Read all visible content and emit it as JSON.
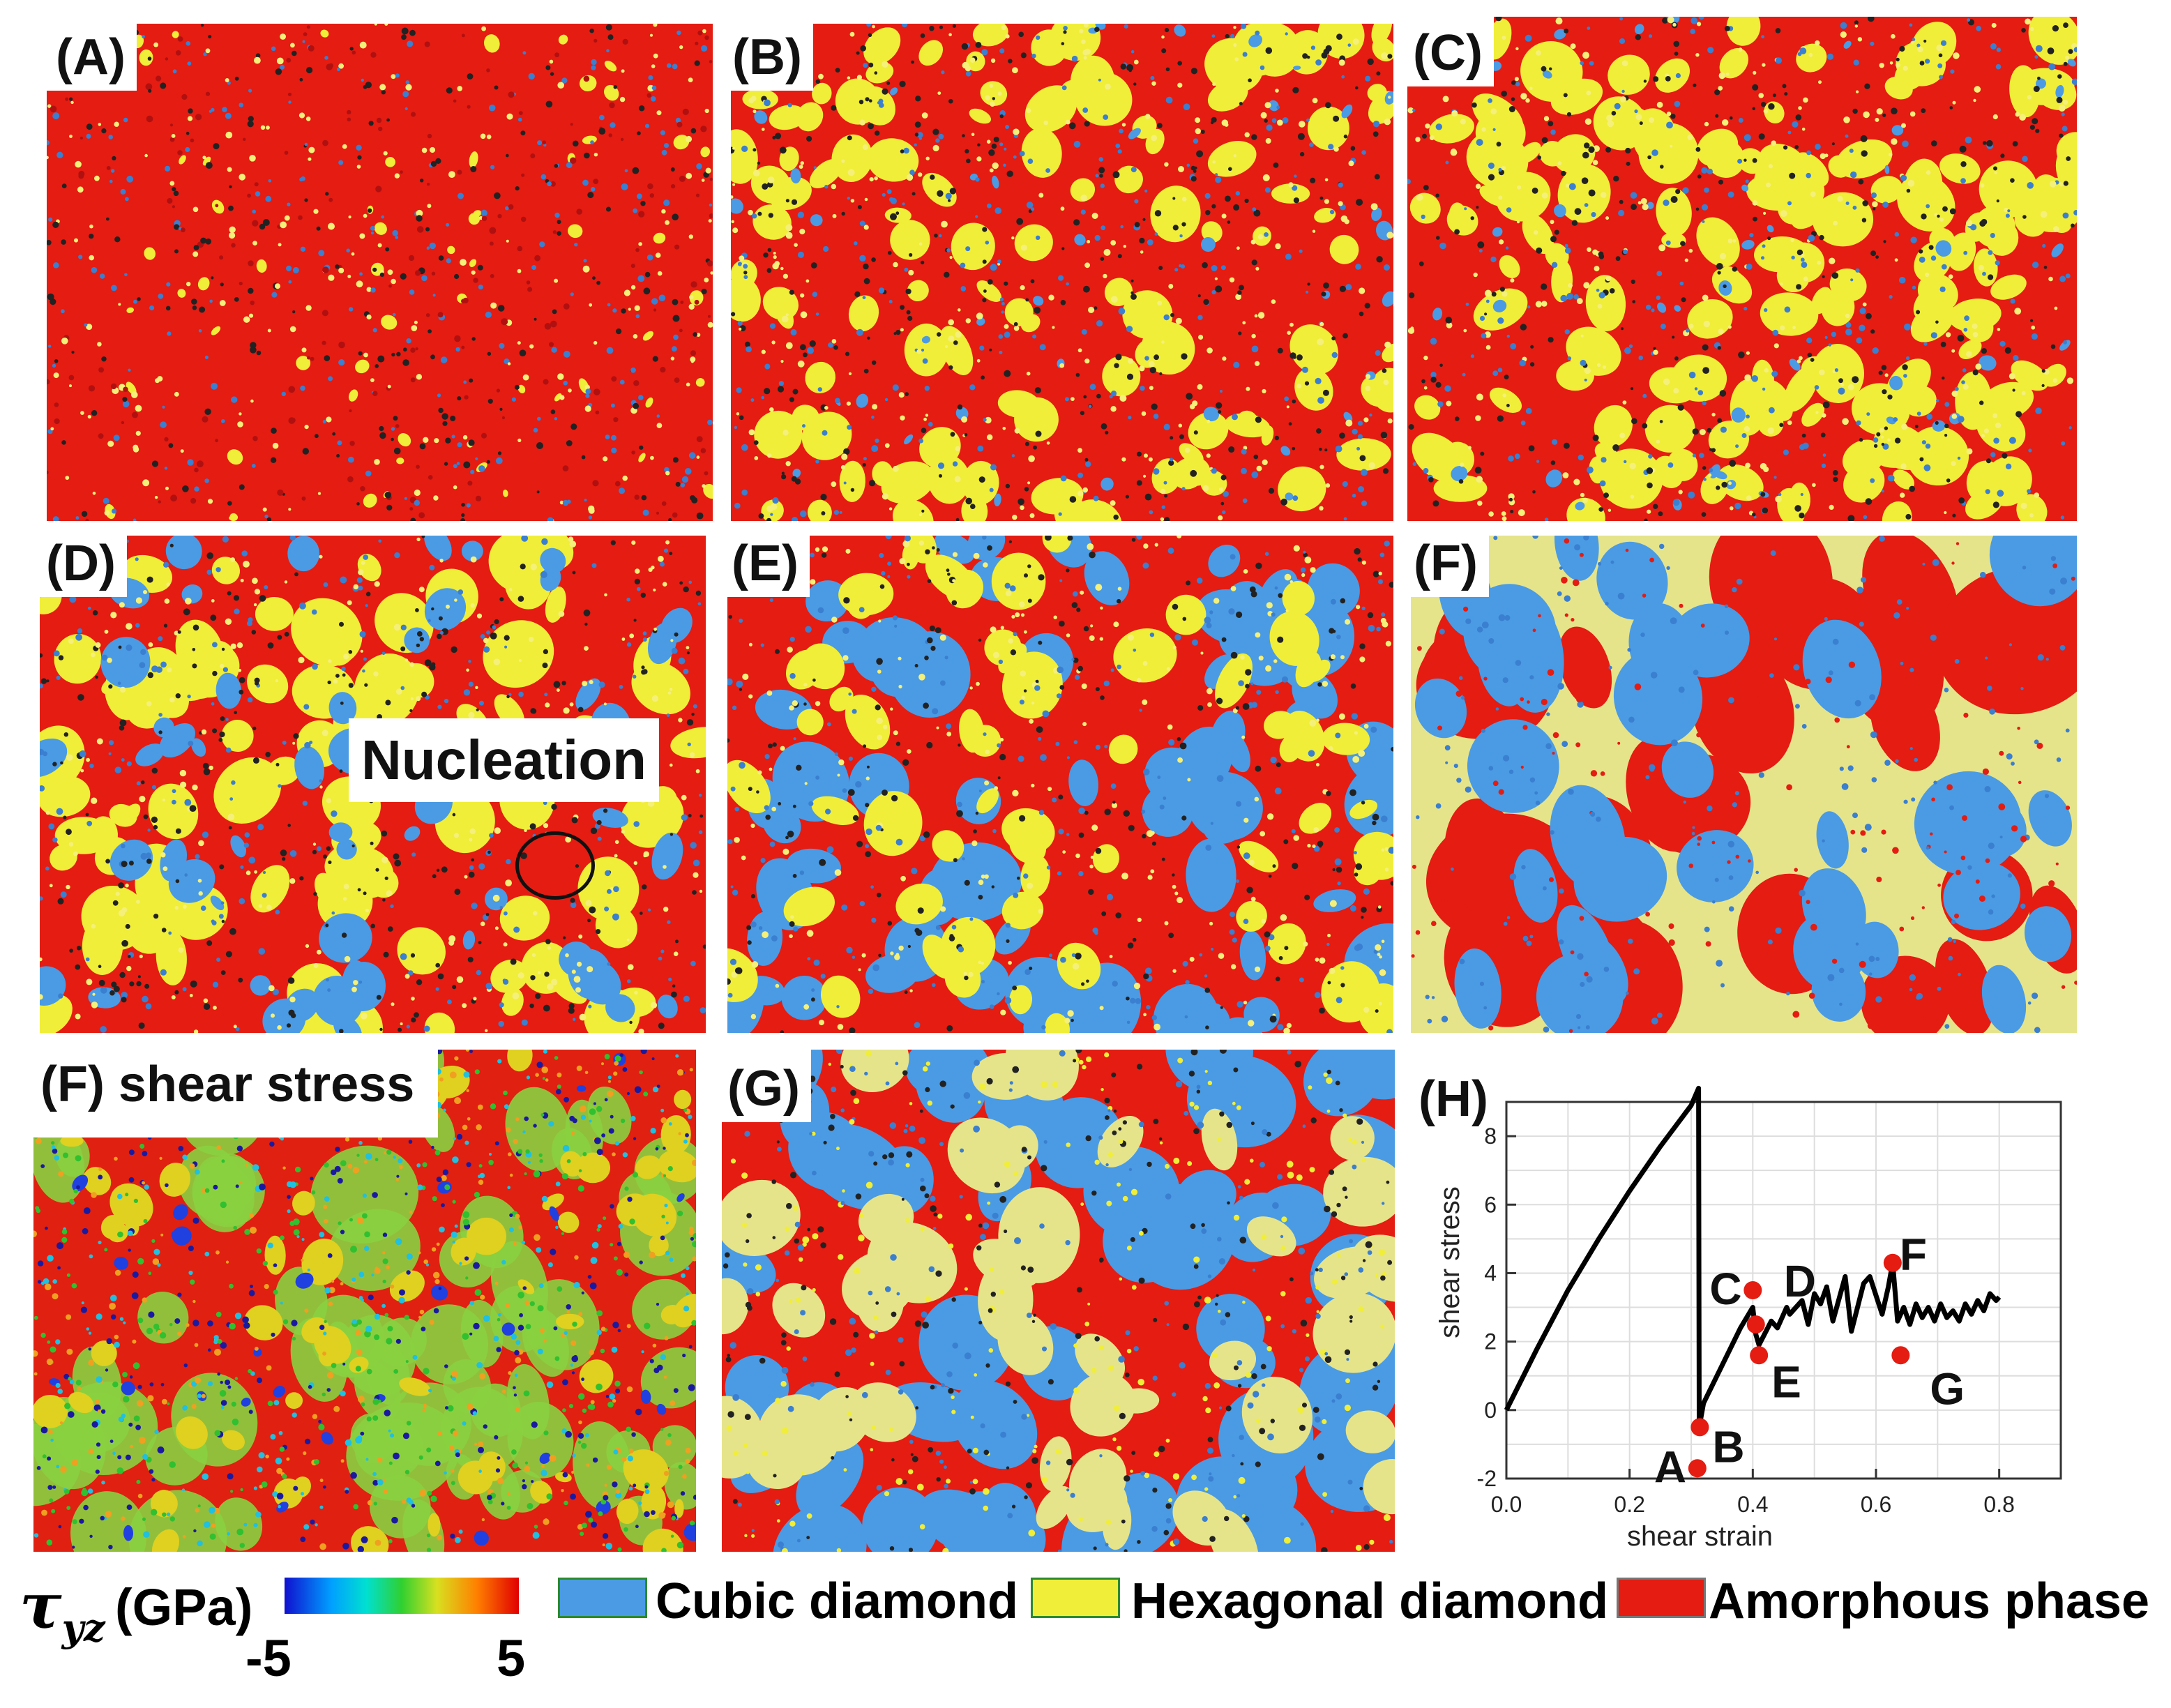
{
  "colors": {
    "cubic": "#4a9be4",
    "hexagonal": "#f0ee38",
    "hexagonal_pale": "#e6e48a",
    "amorphous": "#e41c12",
    "stress_low": "#1010d0",
    "stress_high": "#e00000"
  },
  "panels": {
    "a": {
      "label": "(A)"
    },
    "b": {
      "label": "(B)"
    },
    "c": {
      "label": "(C)"
    },
    "d": {
      "label": "(D)",
      "annotation": "Nucleation"
    },
    "e": {
      "label": "(E)"
    },
    "f": {
      "label": "(F)"
    },
    "f_stress": {
      "label": "(F) shear stress"
    },
    "g": {
      "label": "(G)"
    },
    "h": {
      "label": "(H)"
    }
  },
  "chart_data": {
    "type": "line",
    "xlabel": "shear strain",
    "ylabel": "shear stress",
    "xlim": [
      0.0,
      0.9
    ],
    "ylim": [
      -2,
      9
    ],
    "xticks": [
      "0.0",
      "0.2",
      "0.4",
      "0.6",
      "0.8"
    ],
    "yticks": [
      "-2",
      "0",
      "2",
      "4",
      "6",
      "8"
    ],
    "grid": true,
    "series": [
      {
        "x": [
          0.0,
          0.05,
          0.1,
          0.15,
          0.2,
          0.25,
          0.3,
          0.312,
          0.313,
          0.32,
          0.35,
          0.38,
          0.4,
          0.405,
          0.41,
          0.43,
          0.44,
          0.455,
          0.46,
          0.48,
          0.49,
          0.5,
          0.51,
          0.52,
          0.53,
          0.55,
          0.56,
          0.58,
          0.59,
          0.61,
          0.62,
          0.627,
          0.635,
          0.645,
          0.655,
          0.665,
          0.675,
          0.685,
          0.695,
          0.705,
          0.715,
          0.725,
          0.735,
          0.745,
          0.755,
          0.765,
          0.775,
          0.785,
          0.795,
          0.8
        ],
        "y": [
          0.0,
          1.8,
          3.5,
          5.0,
          6.4,
          7.7,
          8.9,
          9.4,
          -0.5,
          0.2,
          1.3,
          2.4,
          3.0,
          2.2,
          1.9,
          2.6,
          2.4,
          3.0,
          2.8,
          3.2,
          2.5,
          3.4,
          3.1,
          3.6,
          2.6,
          3.9,
          2.3,
          3.7,
          3.9,
          2.8,
          3.6,
          4.3,
          2.6,
          3.0,
          2.5,
          3.1,
          2.7,
          3.0,
          2.6,
          3.1,
          2.7,
          2.9,
          2.6,
          3.1,
          2.8,
          3.2,
          2.9,
          3.4,
          3.2,
          3.3
        ]
      }
    ],
    "points": [
      {
        "label": "A",
        "x": 0.31,
        "y": -1.7
      },
      {
        "label": "B",
        "x": 0.314,
        "y": -0.5
      },
      {
        "label": "C",
        "x": 0.4,
        "y": 3.5
      },
      {
        "label": "D",
        "x": 0.405,
        "y": 2.5
      },
      {
        "label": "E",
        "x": 0.41,
        "y": 1.6
      },
      {
        "label": "F",
        "x": 0.627,
        "y": 4.3
      },
      {
        "label": "G",
        "x": 0.64,
        "y": 1.6
      }
    ]
  },
  "legend": {
    "tau_symbol": "τ",
    "tau_sub": "yz",
    "tau_unit": "(GPa)",
    "cbar_min": "-5",
    "cbar_max": "5",
    "cubic": "Cubic diamond",
    "hexagonal": "Hexagonal diamond",
    "amorphous": "Amorphous phase"
  }
}
